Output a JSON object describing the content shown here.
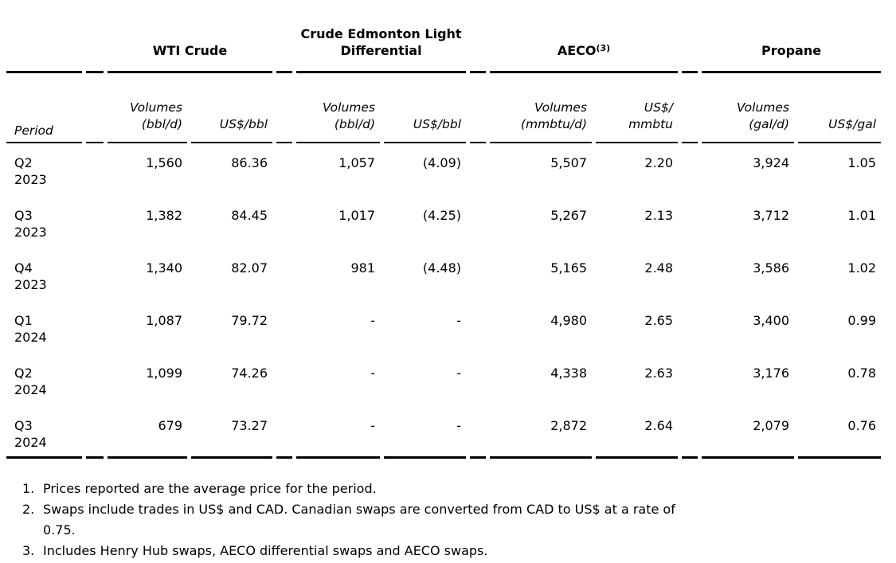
{
  "table": {
    "groups": [
      {
        "label": "WTI Crude"
      },
      {
        "label": "Crude Edmonton Light Differential"
      },
      {
        "label": "AECO",
        "sup": "(3)"
      },
      {
        "label": "Propane"
      }
    ],
    "period_label": "Period",
    "subheaders": {
      "wti_vol": {
        "line1": "Volumes",
        "line2": "(bbl/d)"
      },
      "wti_price": {
        "line1": "US$/bbl"
      },
      "edm_vol": {
        "line1": "Volumes",
        "line2": "(bbl/d)"
      },
      "edm_price": {
        "line1": "US$/bbl"
      },
      "aeco_vol": {
        "line1": "Volumes",
        "line2": "(mmbtu/d)"
      },
      "aeco_price": {
        "line1": "US$/",
        "line2": "mmbtu"
      },
      "prop_vol": {
        "line1": "Volumes",
        "line2": "(gal/d)"
      },
      "prop_price": {
        "line1": "US$/gal"
      }
    },
    "rows": [
      {
        "q": "Q2",
        "year": "2023",
        "wti_vol": "1,560",
        "wti_price": "86.36",
        "edm_vol": "1,057",
        "edm_price": "(4.09)",
        "aeco_vol": "5,507",
        "aeco_price": "2.20",
        "prop_vol": "3,924",
        "prop_price": "1.05"
      },
      {
        "q": "Q3",
        "year": "2023",
        "wti_vol": "1,382",
        "wti_price": "84.45",
        "edm_vol": "1,017",
        "edm_price": "(4.25)",
        "aeco_vol": "5,267",
        "aeco_price": "2.13",
        "prop_vol": "3,712",
        "prop_price": "1.01"
      },
      {
        "q": "Q4",
        "year": "2023",
        "wti_vol": "1,340",
        "wti_price": "82.07",
        "edm_vol": "981",
        "edm_price": "(4.48)",
        "aeco_vol": "5,165",
        "aeco_price": "2.48",
        "prop_vol": "3,586",
        "prop_price": "1.02"
      },
      {
        "q": "Q1",
        "year": "2024",
        "wti_vol": "1,087",
        "wti_price": "79.72",
        "edm_vol": "-",
        "edm_price": "-",
        "aeco_vol": "4,980",
        "aeco_price": "2.65",
        "prop_vol": "3,400",
        "prop_price": "0.99"
      },
      {
        "q": "Q2",
        "year": "2024",
        "wti_vol": "1,099",
        "wti_price": "74.26",
        "edm_vol": "-",
        "edm_price": "-",
        "aeco_vol": "4,338",
        "aeco_price": "2.63",
        "prop_vol": "3,176",
        "prop_price": "0.78"
      },
      {
        "q": "Q3",
        "year": "2024",
        "wti_vol": "679",
        "wti_price": "73.27",
        "edm_vol": "-",
        "edm_price": "-",
        "aeco_vol": "2,872",
        "aeco_price": "2.64",
        "prop_vol": "2,079",
        "prop_price": "0.76"
      }
    ]
  },
  "footnotes": [
    {
      "num": "1.",
      "text": "Prices reported are the average price for the period."
    },
    {
      "num": "2.",
      "text": "Swaps include trades in US$ and CAD. Canadian swaps are converted from CAD to US$ at a rate of",
      "text2": "0.75."
    },
    {
      "num": "3.",
      "text": "Includes Henry Hub swaps, AECO differential swaps and AECO swaps."
    }
  ],
  "colors": {
    "background": "#ffffff",
    "text": "#000000",
    "rule": "#000000"
  }
}
